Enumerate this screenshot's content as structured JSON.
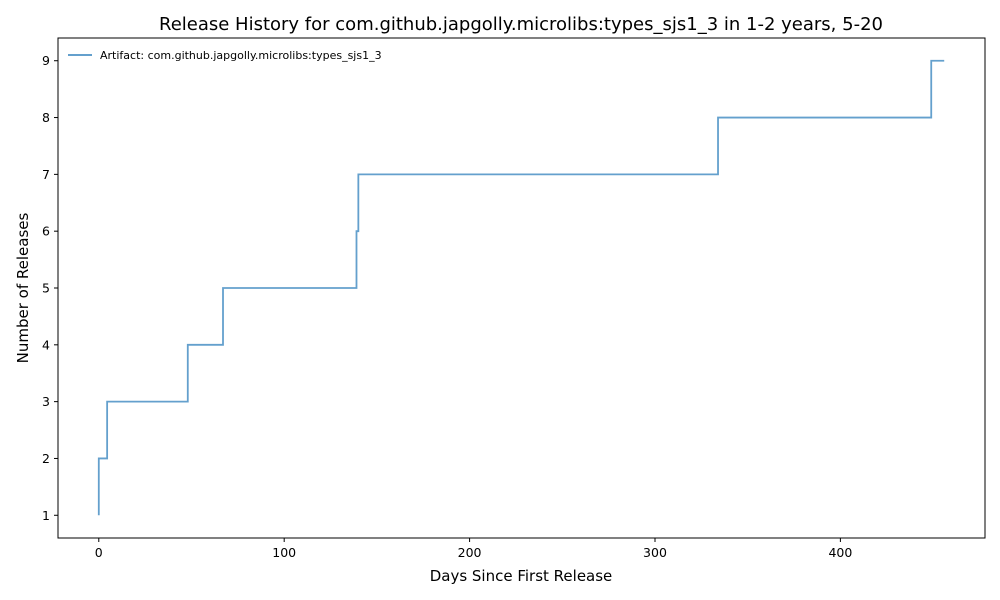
{
  "chart_data": {
    "type": "line",
    "step": true,
    "title": "Release History for com.github.japgolly.microlibs:types_sjs1_3 in 1-2 years, 5-20",
    "xlabel": "Days Since First Release",
    "ylabel": "Number of Releases",
    "xlim": [
      -22,
      478
    ],
    "ylim": [
      0.6,
      9.4
    ],
    "xticks": [
      0,
      100,
      200,
      300,
      400
    ],
    "yticks": [
      1,
      2,
      3,
      4,
      5,
      6,
      7,
      8,
      9
    ],
    "grid": false,
    "legend": "top-left",
    "series": [
      {
        "name": "Artifact: com.github.japgolly.microlibs:types_sjs1_3",
        "color": "#64a0cd",
        "x": [
          0,
          0,
          4.5,
          48,
          67,
          139,
          140,
          334,
          449,
          456
        ],
        "y": [
          1,
          2,
          3,
          4,
          5,
          6,
          7,
          8,
          9,
          9
        ]
      }
    ]
  }
}
